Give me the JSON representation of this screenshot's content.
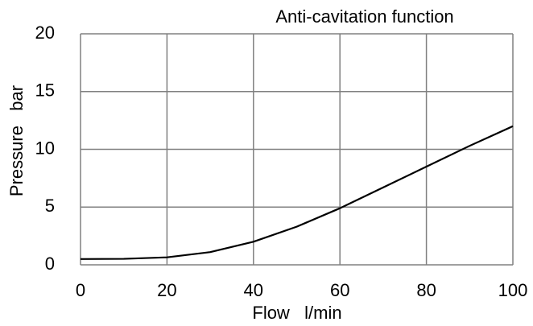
{
  "chart_data": {
    "type": "line",
    "title": "Anti-cavitation function",
    "x_label": "Flow   l/min",
    "y_label": "Pressure   bar",
    "x": [
      0,
      10,
      20,
      30,
      40,
      50,
      60,
      70,
      80,
      90,
      100
    ],
    "series": [
      {
        "name": "Anti-cavitation",
        "color": "#000000",
        "values": [
          0.5,
          0.52,
          0.65,
          1.1,
          2,
          3.3,
          4.9,
          6.7,
          8.5,
          10.3,
          12
        ]
      }
    ],
    "xlim": [
      0,
      100
    ],
    "xticks": [
      0,
      20,
      40,
      60,
      80,
      100
    ],
    "ylim": [
      0,
      20
    ],
    "yticks": [
      0,
      5,
      10,
      15,
      20
    ],
    "grid": true
  }
}
